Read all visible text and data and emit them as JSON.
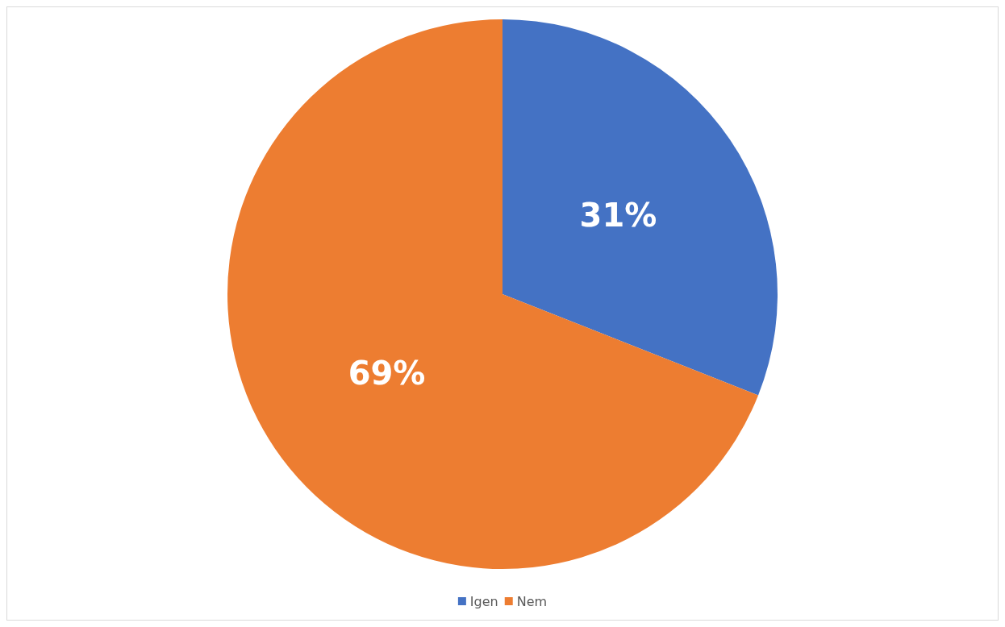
{
  "chart_data": {
    "type": "pie",
    "categories": [
      "Igen",
      "Nem"
    ],
    "values": [
      31,
      69
    ],
    "colors": [
      "#4472c4",
      "#ed7d31"
    ],
    "value_labels": [
      "31%",
      "69%"
    ],
    "legend": "bottom"
  }
}
